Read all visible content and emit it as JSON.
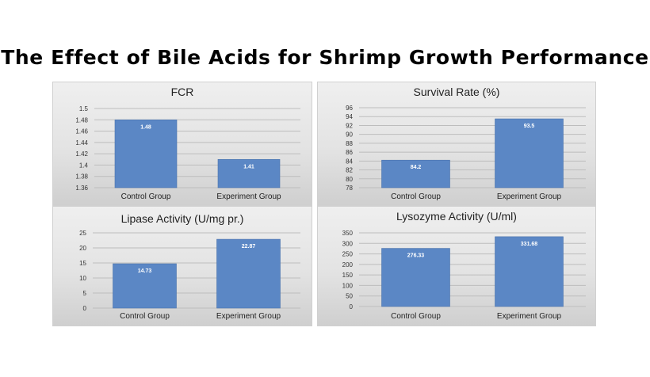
{
  "page_title": "The Effect of Bile Acids for Shrimp Growth Performance",
  "colors": {
    "bar": "#5b87c5",
    "grid": "#bdbdbd"
  },
  "chart_data": [
    {
      "type": "bar",
      "title": "FCR",
      "categories": [
        "Control Group",
        "Experiment Group"
      ],
      "values": [
        1.48,
        1.41
      ],
      "ylim": [
        1.36,
        1.5
      ],
      "yticks": [
        "1.5",
        "1.48",
        "1.46",
        "1.44",
        "1.42",
        "1.4",
        "1.38",
        "1.36"
      ],
      "data_labels": [
        "1.48",
        "1.41"
      ],
      "grid": true
    },
    {
      "type": "bar",
      "title": "Survival Rate (%)",
      "categories": [
        "Control Group",
        "Experiment Group"
      ],
      "values": [
        84.2,
        93.5
      ],
      "ylim": [
        78,
        96
      ],
      "yticks": [
        "96",
        "94",
        "92",
        "90",
        "88",
        "86",
        "84",
        "82",
        "80",
        "78"
      ],
      "data_labels": [
        "84.2",
        "93.5"
      ],
      "grid": true
    },
    {
      "type": "bar",
      "title": "Lipase Activity (U/mg pr.)",
      "categories": [
        "Control Group",
        "Experiment Group"
      ],
      "values": [
        14.73,
        22.87
      ],
      "ylim": [
        0,
        25
      ],
      "yticks": [
        "25",
        "20",
        "15",
        "10",
        "5",
        "0"
      ],
      "data_labels": [
        "14.73",
        "22.87"
      ],
      "grid": true
    },
    {
      "type": "bar",
      "title": "Lysozyme Activity (U/ml)",
      "categories": [
        "Control Group",
        "Experiment Group"
      ],
      "values": [
        276.33,
        331.68
      ],
      "ylim": [
        0,
        350
      ],
      "yticks": [
        "350",
        "300",
        "250",
        "200",
        "150",
        "100",
        "50",
        "0"
      ],
      "data_labels": [
        "276.33",
        "331.68"
      ],
      "grid": true
    }
  ]
}
